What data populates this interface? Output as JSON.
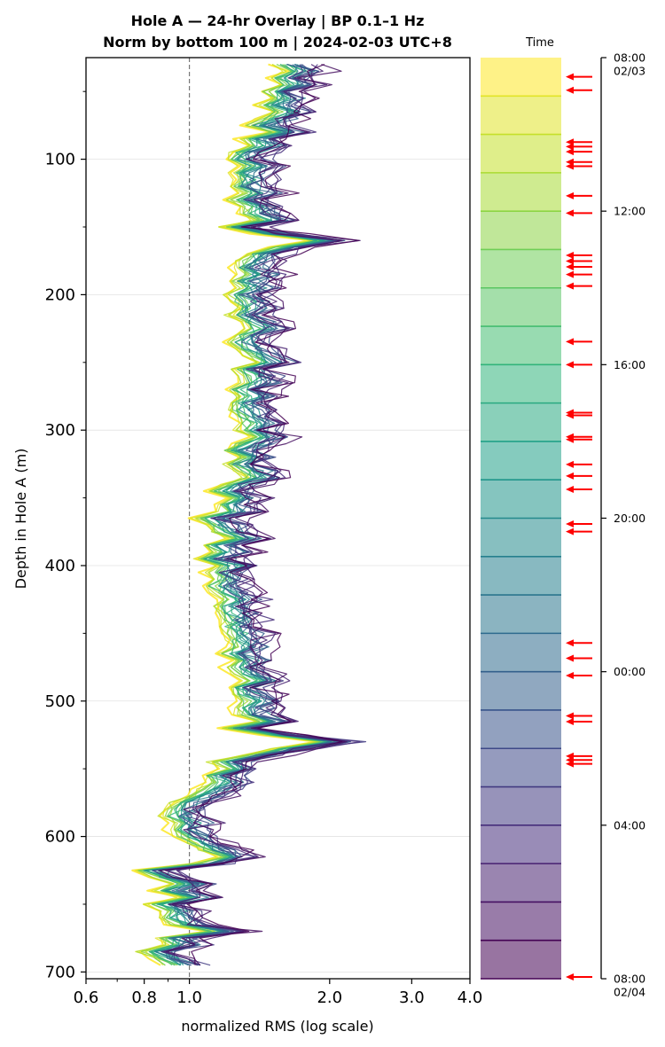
{
  "chart_data": [
    {
      "type": "line",
      "title_line1": "Hole A — 24-hr Overlay  |  BP 0.1–1 Hz",
      "title_line2": "Norm by bottom 100 m  |  2024-02-03 UTC+8",
      "xlabel": "normalized RMS  (log scale)",
      "ylabel": "Depth in Hole A (m)",
      "x_scale": "log",
      "xlim": [
        0.6,
        4.0
      ],
      "ylim": [
        705,
        25
      ],
      "y_inverted": true,
      "xticks": [
        "0.6",
        "0.8",
        "1.0",
        "2.0",
        "3.0",
        "4.0"
      ],
      "xtick_values": [
        0.6,
        0.8,
        1.0,
        2.0,
        3.0,
        4.0
      ],
      "yticks": [
        "100",
        "200",
        "300",
        "400",
        "500",
        "600",
        "700"
      ],
      "ytick_values": [
        100,
        200,
        300,
        400,
        500,
        600,
        700
      ],
      "reference_line": {
        "x": 1.0,
        "style": "dashed",
        "color": "#777777"
      },
      "grid": "horizontal",
      "colormap": "viridis",
      "n_series": 24,
      "depth_points": [
        30,
        35,
        40,
        45,
        50,
        55,
        60,
        65,
        70,
        75,
        80,
        85,
        90,
        95,
        100,
        105,
        110,
        115,
        120,
        125,
        130,
        135,
        140,
        145,
        150,
        155,
        160,
        165,
        170,
        175,
        180,
        185,
        190,
        195,
        200,
        205,
        210,
        215,
        220,
        225,
        230,
        235,
        240,
        245,
        250,
        255,
        260,
        265,
        270,
        275,
        280,
        285,
        290,
        295,
        300,
        305,
        310,
        315,
        320,
        325,
        330,
        335,
        340,
        345,
        350,
        355,
        360,
        365,
        370,
        375,
        380,
        385,
        390,
        395,
        400,
        405,
        410,
        415,
        420,
        425,
        430,
        435,
        440,
        445,
        450,
        455,
        460,
        465,
        470,
        475,
        480,
        485,
        490,
        495,
        500,
        505,
        510,
        515,
        520,
        525,
        530,
        535,
        540,
        545,
        550,
        555,
        560,
        565,
        570,
        575,
        580,
        585,
        590,
        595,
        600,
        605,
        610,
        615,
        620,
        625,
        630,
        635,
        640,
        645,
        650,
        655,
        660,
        665,
        670,
        675,
        680,
        685,
        690,
        695
      ],
      "series_late_rms": [
        1.5,
        1.6,
        1.47,
        1.55,
        1.42,
        1.5,
        1.38,
        1.5,
        1.4,
        1.3,
        1.48,
        1.27,
        1.33,
        1.23,
        1.2,
        1.28,
        1.21,
        1.25,
        1.21,
        1.29,
        1.2,
        1.28,
        1.28,
        1.38,
        1.17,
        1.37,
        1.82,
        1.48,
        1.32,
        1.27,
        1.23,
        1.28,
        1.21,
        1.26,
        1.19,
        1.23,
        1.26,
        1.2,
        1.28,
        1.31,
        1.23,
        1.2,
        1.25,
        1.3,
        1.38,
        1.23,
        1.27,
        1.29,
        1.2,
        1.26,
        1.21,
        1.21,
        1.24,
        1.29,
        1.26,
        1.34,
        1.25,
        1.18,
        1.26,
        1.19,
        1.25,
        1.31,
        1.17,
        1.09,
        1.2,
        1.13,
        1.15,
        1.02,
        1.08,
        1.12,
        1.2,
        1.06,
        1.11,
        1.03,
        1.13,
        1.07,
        1.12,
        1.08,
        1.11,
        1.17,
        1.13,
        1.14,
        1.17,
        1.15,
        1.19,
        1.2,
        1.22,
        1.15,
        1.23,
        1.18,
        1.23,
        1.31,
        1.2,
        1.22,
        1.27,
        1.23,
        1.26,
        1.38,
        1.17,
        1.43,
        1.88,
        1.5,
        1.3,
        1.1,
        1.16,
        1.06,
        1.1,
        1.03,
        0.99,
        0.91,
        0.88,
        0.86,
        0.92,
        0.89,
        0.93,
        0.99,
        1.05,
        1.15,
        1.01,
        0.75,
        0.81,
        0.91,
        0.83,
        0.95,
        0.8,
        0.87,
        0.86,
        0.9,
        1.08,
        0.85,
        0.88,
        0.77,
        0.83,
        0.88
      ],
      "colorbar": {
        "label": "Time",
        "ticks": [
          "08:00\n02/03",
          "12:00",
          "16:00",
          "20:00",
          "00:00",
          "04:00",
          "08:00\n02/04"
        ],
        "tick_hours": [
          0,
          4,
          8,
          12,
          16,
          20,
          24
        ],
        "n_bands": 24,
        "event_markers_hours": [
          0.5,
          0.85,
          2.2,
          2.32,
          2.45,
          2.72,
          2.83,
          3.6,
          4.05,
          5.15,
          5.3,
          5.45,
          5.65,
          5.95,
          7.4,
          8.0,
          9.25,
          9.32,
          9.88,
          9.95,
          10.6,
          10.9,
          11.25,
          12.15,
          12.35,
          15.25,
          15.65,
          16.1,
          17.15,
          17.3,
          18.2,
          18.3,
          18.4,
          24.0
        ]
      }
    }
  ]
}
